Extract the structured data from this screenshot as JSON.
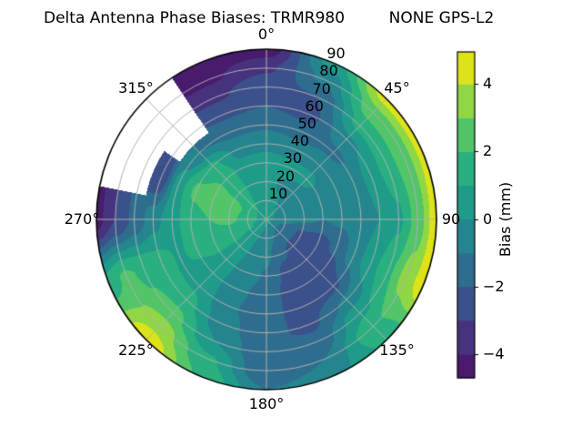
{
  "chart_data": {
    "type": "polar_contourf",
    "title": "Delta Antenna Phase Biases: TRMR980         NONE GPS-L2",
    "azimuth_ticks": [
      "0°",
      "45°",
      "90",
      "135°",
      "180°",
      "225°",
      "270°",
      "315°"
    ],
    "azimuth_angles_deg": [
      0,
      45,
      90,
      135,
      180,
      225,
      270,
      315
    ],
    "radial_ticks": [
      "10",
      "20",
      "30",
      "40",
      "50",
      "60",
      "70",
      "80",
      "90"
    ],
    "radial_tick_values": [
      10,
      20,
      30,
      40,
      50,
      60,
      70,
      80,
      90
    ],
    "radial_label_azimuth_deg": 22.5,
    "grid": {
      "color": "#b0b0b0",
      "radial_step_deg": 10,
      "azimuth_step_deg": 45,
      "rim_color": "#000000"
    },
    "colorbar": {
      "label": "Bias (mm)",
      "ticks": [
        4,
        2,
        0,
        -2,
        -4
      ],
      "tick_labels": [
        "4",
        "2",
        "0",
        "−2",
        "−4"
      ],
      "vmin": -4.7,
      "vmax": 4.95,
      "level_boundaries": [
        -4,
        -3,
        -2,
        -1,
        0,
        1,
        2,
        3,
        4
      ],
      "colors": [
        "#481b6d",
        "#46327e",
        "#3b518b",
        "#2e6d8e",
        "#25858e",
        "#1e9c89",
        "#2ab07f",
        "#52c569",
        "#8fd744",
        "#dde318"
      ],
      "missing_color": "#ffffff"
    },
    "field": {
      "units": "mm",
      "azimuths_deg": [
        0,
        22.5,
        45,
        67.5,
        90,
        112.5,
        135,
        157.5,
        180,
        202.5,
        225,
        247.5,
        270,
        292.5,
        315,
        337.5
      ],
      "zeniths_deg": [
        0,
        10,
        20,
        30,
        40,
        50,
        60,
        70,
        80,
        90
      ],
      "values": [
        [
          0.2,
          0.2,
          0.2,
          0.2,
          0.2,
          0.2,
          0.2,
          0.2,
          0.2,
          0.2,
          0.2,
          0.2,
          0.2,
          0.2,
          0.2,
          0.2
        ],
        [
          0.4,
          0.1,
          -0.1,
          -0.3,
          -0.6,
          -1.2,
          -1.4,
          -1.0,
          -0.4,
          0.0,
          0.6,
          1.2,
          1.7,
          1.8,
          1.2,
          0.7
        ],
        [
          0.4,
          -0.1,
          -0.3,
          -0.5,
          -0.8,
          -2.2,
          -2.3,
          -1.8,
          -0.8,
          -0.2,
          0.7,
          1.5,
          2.2,
          2.4,
          1.6,
          0.6
        ],
        [
          0.3,
          0.3,
          0.2,
          -0.3,
          -1.0,
          -2.4,
          -2.8,
          -2.4,
          -1.1,
          -0.5,
          0.5,
          1.7,
          2.0,
          2.6,
          1.8,
          0.3
        ],
        [
          -0.2,
          -0.5,
          -0.3,
          -0.4,
          -0.8,
          -1.8,
          -2.9,
          -2.7,
          -1.4,
          -0.8,
          0.5,
          1.2,
          1.6,
          2.2,
          1.2,
          -0.3
        ],
        [
          -1.2,
          -1.6,
          -1.2,
          -0.6,
          -0.5,
          -0.5,
          -2.2,
          -2.5,
          -1.6,
          -0.9,
          0.8,
          0.9,
          0.6,
          0.5,
          -1.0,
          -1.3
        ],
        [
          -2.0,
          -2.3,
          -0.2,
          0.4,
          0.0,
          0.6,
          -0.8,
          -2.2,
          -1.8,
          -0.6,
          1.4,
          1.4,
          -0.4,
          -3.0,
          null,
          -2.2
        ],
        [
          -2.2,
          -2.0,
          1.3,
          1.5,
          0.8,
          1.8,
          0.8,
          -1.7,
          -1.9,
          0.0,
          2.4,
          1.8,
          -1.8,
          null,
          null,
          -3.2
        ],
        [
          -3.2,
          -0.8,
          2.6,
          2.6,
          2.4,
          3.4,
          1.8,
          -1.0,
          -2.0,
          1.2,
          3.6,
          2.2,
          -3.0,
          null,
          null,
          -4.2
        ],
        [
          -4.6,
          0.3,
          4.4,
          4.4,
          4.7,
          4.6,
          1.2,
          -0.4,
          -1.0,
          1.8,
          4.8,
          1.5,
          -4.4,
          null,
          null,
          -4.8
        ]
      ]
    }
  }
}
